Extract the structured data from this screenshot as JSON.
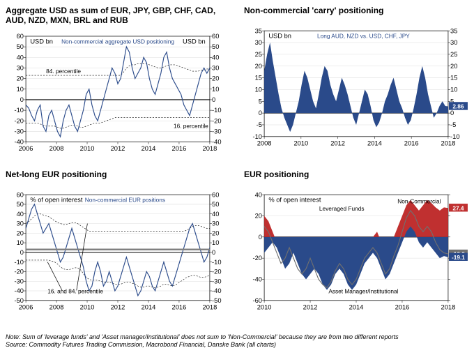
{
  "charts": {
    "c1": {
      "title": "Aggregate USD as sum of EUR, JPY, GBP, CHF, CAD, AUD, NZD, MXN, BRL and RUB",
      "ylabel_left": "USD bn",
      "ylabel_right": "USD bn",
      "series_label": "Non-commercial aggregate USD positioning",
      "ann_upper": "84. percentile",
      "ann_lower": "16. percentile",
      "ylim": [
        -40,
        60
      ],
      "ytick_step": 10,
      "xticks": [
        "2006",
        "2008",
        "2010",
        "2012",
        "2014",
        "2016",
        "2018"
      ],
      "line_color": "#2a4a8a",
      "grid_color": "#dddddd",
      "data": [
        -5,
        -8,
        -15,
        -20,
        -10,
        -5,
        -25,
        -30,
        -15,
        -10,
        -20,
        -30,
        -35,
        -20,
        -10,
        -5,
        -15,
        -25,
        -30,
        -20,
        -10,
        5,
        10,
        -5,
        -15,
        -20,
        -10,
        0,
        10,
        20,
        30,
        25,
        15,
        20,
        35,
        50,
        45,
        30,
        20,
        25,
        30,
        40,
        35,
        20,
        10,
        5,
        15,
        25,
        40,
        45,
        30,
        20,
        15,
        10,
        5,
        -5,
        -10,
        -15,
        -5,
        5,
        15,
        25,
        30,
        25,
        30
      ],
      "band_upper": [
        23,
        23,
        23,
        23,
        23,
        23,
        23,
        23,
        23,
        23,
        23,
        23,
        23,
        23,
        23,
        23,
        23,
        23,
        23,
        23,
        23,
        23,
        23,
        23,
        23,
        23,
        23,
        23,
        23,
        23,
        23,
        23,
        23,
        23,
        26,
        30,
        32,
        33,
        33,
        34,
        34,
        34,
        34,
        33,
        32,
        31,
        30,
        30,
        31,
        32,
        33,
        33,
        33,
        32,
        31,
        30,
        29,
        28,
        27,
        27,
        27,
        28,
        28,
        29,
        29
      ],
      "band_lower": [
        -22,
        -22,
        -22,
        -22,
        -22,
        -23,
        -24,
        -25,
        -25,
        -25,
        -25,
        -26,
        -27,
        -27,
        -26,
        -25,
        -24,
        -24,
        -25,
        -26,
        -26,
        -25,
        -24,
        -23,
        -22,
        -22,
        -22,
        -21,
        -20,
        -19,
        -18,
        -17,
        -17,
        -17,
        -17,
        -17,
        -17,
        -17,
        -17,
        -17,
        -17,
        -17,
        -17,
        -17,
        -17,
        -17,
        -17,
        -17,
        -17,
        -17,
        -17,
        -17,
        -17,
        -17,
        -17,
        -17,
        -17,
        -17,
        -17,
        -17,
        -17,
        -17,
        -17,
        -17,
        -17
      ]
    },
    "c2": {
      "title": "Non-commercial 'carry' positioning",
      "ylabel_left": "USD bn",
      "series_label": "Long AUD, NZD vs. USD, CHF, JPY",
      "ylim": [
        -10,
        35
      ],
      "ytick_step": 5,
      "xticks": [
        "2008",
        "2010",
        "2012",
        "2014",
        "2016",
        "2018"
      ],
      "fill_color": "#2a4a8a",
      "end_value": "2.86",
      "data": [
        18,
        25,
        30,
        22,
        15,
        8,
        2,
        -2,
        -5,
        -8,
        -5,
        0,
        5,
        12,
        18,
        15,
        10,
        5,
        2,
        8,
        15,
        20,
        18,
        12,
        8,
        5,
        10,
        15,
        12,
        8,
        3,
        -2,
        -5,
        0,
        5,
        10,
        8,
        3,
        -3,
        -6,
        -4,
        0,
        5,
        8,
        12,
        15,
        10,
        5,
        2,
        -2,
        -5,
        -3,
        2,
        8,
        15,
        20,
        15,
        8,
        3,
        -2,
        0,
        3,
        5,
        3,
        2.86
      ]
    },
    "c3": {
      "title": "Net-long EUR positioning",
      "ylabel_left": "% of open interest",
      "series_label": "Non-commercial EUR positions",
      "ann": "16. and 84. percentile",
      "ylim": [
        -50,
        60
      ],
      "ytick_step": 10,
      "xticks": [
        "2006",
        "2008",
        "2010",
        "2012",
        "2014",
        "2016",
        "2018"
      ],
      "line_color": "#2a4a8a",
      "data": [
        25,
        35,
        45,
        50,
        40,
        30,
        20,
        25,
        30,
        20,
        10,
        0,
        -10,
        -5,
        5,
        15,
        25,
        15,
        5,
        -5,
        -15,
        -30,
        -40,
        -35,
        -20,
        -10,
        -20,
        -35,
        -30,
        -20,
        -30,
        -40,
        -35,
        -25,
        -15,
        -5,
        -15,
        -25,
        -35,
        -45,
        -40,
        -30,
        -20,
        -25,
        -35,
        -40,
        -30,
        -20,
        -10,
        -20,
        -30,
        -35,
        -25,
        -15,
        -5,
        5,
        15,
        25,
        30,
        20,
        10,
        0,
        -10,
        -5,
        5
      ],
      "band_upper": [
        30,
        32,
        35,
        38,
        40,
        40,
        39,
        38,
        37,
        35,
        33,
        31,
        30,
        29,
        29,
        30,
        31,
        31,
        30,
        28,
        26,
        24,
        22,
        22,
        22,
        22,
        22,
        22,
        22,
        22,
        22,
        22,
        22,
        22,
        22,
        22,
        22,
        22,
        22,
        22,
        22,
        22,
        22,
        22,
        22,
        22,
        22,
        22,
        22,
        22,
        22,
        22,
        22,
        22,
        22,
        22,
        23,
        25,
        27,
        28,
        28,
        27,
        26,
        25,
        25
      ],
      "band_lower": [
        -8,
        -8,
        -8,
        -8,
        -8,
        -8,
        -8,
        -8,
        -8,
        -9,
        -10,
        -12,
        -15,
        -17,
        -18,
        -18,
        -17,
        -16,
        -16,
        -18,
        -22,
        -26,
        -28,
        -29,
        -29,
        -29,
        -30,
        -31,
        -31,
        -31,
        -32,
        -33,
        -33,
        -33,
        -32,
        -31,
        -31,
        -32,
        -33,
        -35,
        -36,
        -36,
        -35,
        -35,
        -36,
        -37,
        -36,
        -35,
        -33,
        -33,
        -34,
        -35,
        -34,
        -32,
        -30,
        -28,
        -26,
        -25,
        -24,
        -24,
        -25,
        -26,
        -26,
        -25,
        -24
      ]
    },
    "c4": {
      "title": "EUR positioning",
      "ylabel_left": "% of open interest",
      "label_nc": "Non-Commercial",
      "label_lev": "Leveraged Funds",
      "label_am": "Asset Manager/Institutional",
      "ylim": [
        -60,
        40
      ],
      "ytick_step": 20,
      "xticks": [
        "2010",
        "2012",
        "2014",
        "2016",
        "2018"
      ],
      "color_am": "#c03030",
      "color_lev": "#2a4a8a",
      "color_nc": "#707070",
      "end_am": "27.4",
      "end_lev": "-19.1",
      "end_nc": "-16.0",
      "data_am": [
        20,
        15,
        5,
        -5,
        -10,
        -5,
        0,
        -10,
        -20,
        -25,
        -20,
        -10,
        -20,
        -30,
        -35,
        -40,
        -35,
        -25,
        -15,
        -20,
        -30,
        -35,
        -30,
        -20,
        -10,
        -5,
        0,
        5,
        -5,
        -15,
        -10,
        0,
        10,
        20,
        30,
        35,
        30,
        25,
        30,
        35,
        32,
        28,
        25,
        28,
        27.4
      ],
      "data_lev": [
        -15,
        -10,
        -5,
        -10,
        -20,
        -30,
        -25,
        -15,
        -25,
        -35,
        -40,
        -35,
        -30,
        -35,
        -45,
        -50,
        -45,
        -35,
        -30,
        -35,
        -45,
        -50,
        -45,
        -35,
        -25,
        -20,
        -15,
        -20,
        -30,
        -40,
        -35,
        -25,
        -15,
        -5,
        5,
        10,
        5,
        -5,
        -10,
        -5,
        -10,
        -15,
        -20,
        -18,
        -19.1
      ],
      "data_nc": [
        10,
        5,
        -5,
        -15,
        -25,
        -20,
        -10,
        -20,
        -30,
        -35,
        -30,
        -20,
        -30,
        -40,
        -45,
        -48,
        -42,
        -32,
        -25,
        -30,
        -40,
        -45,
        -40,
        -30,
        -20,
        -15,
        -10,
        -15,
        -25,
        -35,
        -30,
        -18,
        -8,
        5,
        18,
        25,
        20,
        10,
        5,
        10,
        5,
        -5,
        -12,
        -15,
        -16
      ]
    }
  },
  "footnote_line1": "Note: Sum of 'leverage funds' and 'Asset manager/Institutional' does not sum to 'Non-Commercial' because they are from two different reports",
  "footnote_line2": "Source: Commodity Futures Trading Commission, Macrobond Financial, Danske Bank (all charts)"
}
